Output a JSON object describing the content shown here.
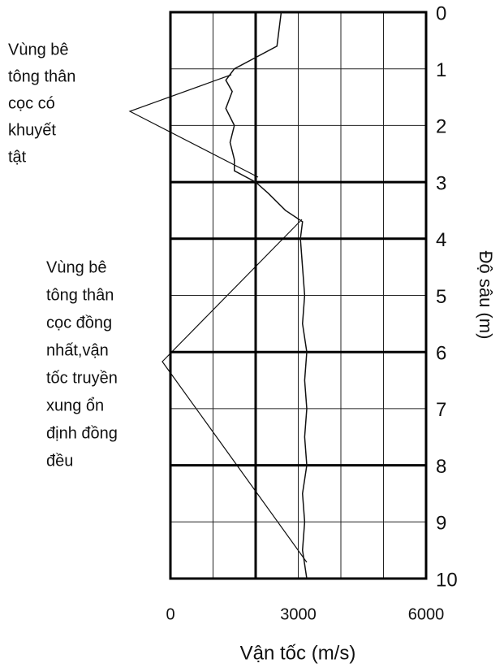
{
  "chart_data": {
    "type": "line",
    "xlabel": "Vận tốc (m/s)",
    "ylabel": "Độ sâu (m)",
    "xlim": [
      0,
      6000
    ],
    "xticks": [
      0,
      3000,
      6000
    ],
    "ylim": [
      0,
      10
    ],
    "yticks": [
      0,
      1,
      2,
      3,
      4,
      5,
      6,
      7,
      8,
      9,
      10
    ],
    "y_inverted": true,
    "xgrid_step": 1000,
    "thick_grid": {
      "x": [
        2000
      ],
      "y": [
        3,
        4,
        6,
        8
      ]
    },
    "series": [
      {
        "color": "#111111",
        "x": [
          2600,
          2550,
          2500,
          2000,
          1500,
          1300,
          1450,
          1300,
          1500,
          1400,
          1500,
          1500,
          2000,
          2300,
          2700,
          3100,
          3050,
          3100,
          3150,
          3100,
          3200,
          3150,
          3200,
          3150,
          3200,
          3100,
          3150,
          3100,
          3200
        ],
        "y": [
          0,
          0.3,
          0.6,
          0.8,
          1.0,
          1.2,
          1.4,
          1.7,
          2.0,
          2.3,
          2.6,
          2.8,
          3.0,
          3.2,
          3.5,
          3.7,
          4.0,
          4.5,
          5.0,
          5.5,
          6.0,
          6.5,
          7.0,
          7.5,
          8.0,
          8.5,
          9.0,
          9.5,
          10.0
        ]
      }
    ],
    "annotations": [
      {
        "lines": [
          "Vùng bê",
          "tông thân",
          "cọc có",
          "khuyết",
          "tật"
        ]
      },
      {
        "lines": [
          "Vùng bê",
          "tông thân",
          "cọc đồng",
          "nhất,vận",
          "tốc truyền",
          "xung ổn",
          "định đồng",
          "đều"
        ]
      }
    ]
  }
}
